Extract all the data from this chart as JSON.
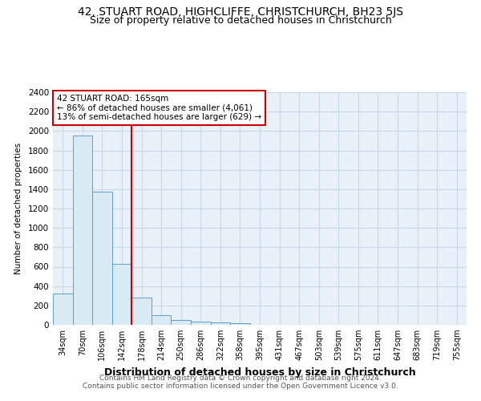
{
  "title": "42, STUART ROAD, HIGHCLIFFE, CHRISTCHURCH, BH23 5JS",
  "subtitle": "Size of property relative to detached houses in Christchurch",
  "xlabel": "Distribution of detached houses by size in Christchurch",
  "ylabel": "Number of detached properties",
  "footnote1": "Contains HM Land Registry data © Crown copyright and database right 2024.",
  "footnote2": "Contains public sector information licensed under the Open Government Licence v3.0.",
  "categories": [
    "34sqm",
    "70sqm",
    "106sqm",
    "142sqm",
    "178sqm",
    "214sqm",
    "250sqm",
    "286sqm",
    "322sqm",
    "358sqm",
    "395sqm",
    "431sqm",
    "467sqm",
    "503sqm",
    "539sqm",
    "575sqm",
    "611sqm",
    "647sqm",
    "683sqm",
    "719sqm",
    "755sqm"
  ],
  "values": [
    325,
    1950,
    1370,
    630,
    285,
    100,
    50,
    30,
    25,
    20,
    0,
    0,
    0,
    0,
    0,
    0,
    0,
    0,
    0,
    0,
    0
  ],
  "bar_color": "#daeaf5",
  "bar_edge_color": "#5a9fd4",
  "grid_color": "#c8d8e8",
  "red_line_x": 3.5,
  "annotation_text_line1": "42 STUART ROAD: 165sqm",
  "annotation_text_line2": "← 86% of detached houses are smaller (4,061)",
  "annotation_text_line3": "13% of semi-detached houses are larger (629) →",
  "annotation_box_color": "#cc0000",
  "ylim": [
    0,
    2400
  ],
  "yticks": [
    0,
    200,
    400,
    600,
    800,
    1000,
    1200,
    1400,
    1600,
    1800,
    2000,
    2200,
    2400
  ],
  "ax_facecolor": "#e8f0f8",
  "background_color": "#ffffff",
  "title_fontsize": 10,
  "subtitle_fontsize": 9
}
